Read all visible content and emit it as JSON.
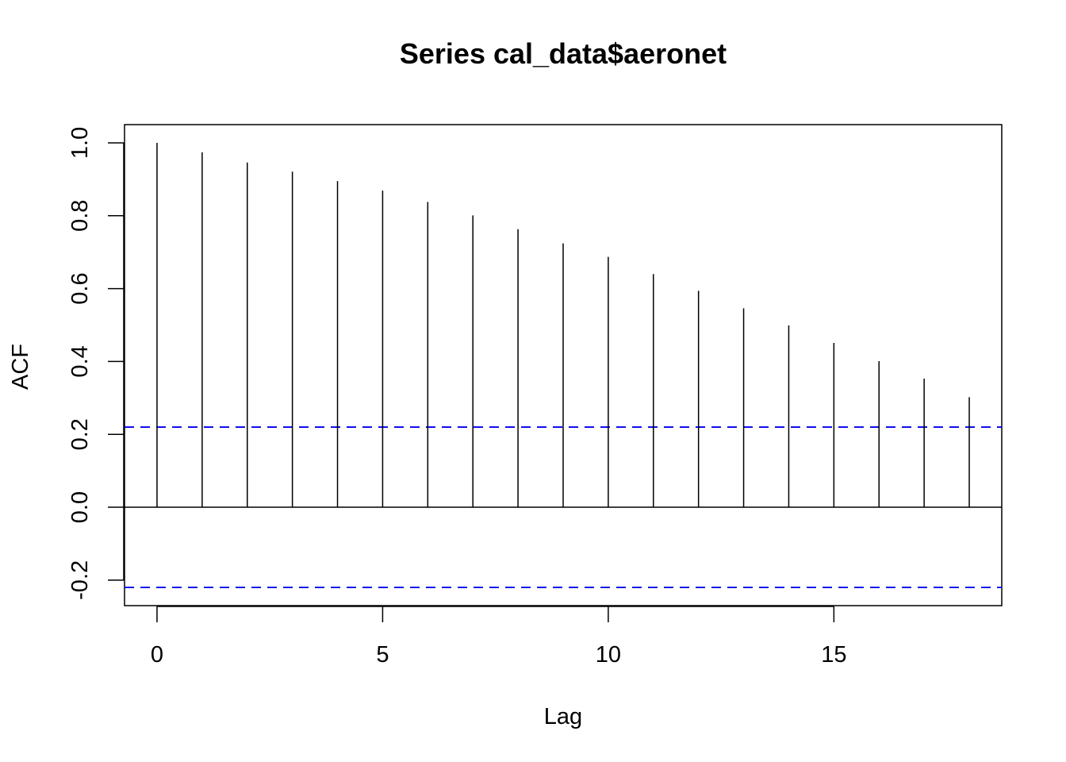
{
  "chart_data": {
    "type": "bar",
    "title": "Series  cal_data$aeronet",
    "xlabel": "Lag",
    "ylabel": "ACF",
    "x_ticks": [
      "0",
      "5",
      "10",
      "15"
    ],
    "y_ticks": [
      "-0.2",
      "0.0",
      "0.2",
      "0.4",
      "0.6",
      "0.8",
      "1.0"
    ],
    "xlim": [
      -0.72,
      18.72
    ],
    "ylim": [
      -0.27,
      1.05
    ],
    "lags": [
      0,
      1,
      2,
      3,
      4,
      5,
      6,
      7,
      8,
      9,
      10,
      11,
      12,
      13,
      14,
      15,
      16,
      17,
      18
    ],
    "values": [
      1.0,
      0.974,
      0.946,
      0.921,
      0.895,
      0.869,
      0.838,
      0.801,
      0.763,
      0.724,
      0.687,
      0.64,
      0.594,
      0.546,
      0.499,
      0.451,
      0.401,
      0.353,
      0.302
    ],
    "confidence_bound": 0.22,
    "ci_color": "#0000ee",
    "bar_color": "#000000",
    "grid": false
  }
}
